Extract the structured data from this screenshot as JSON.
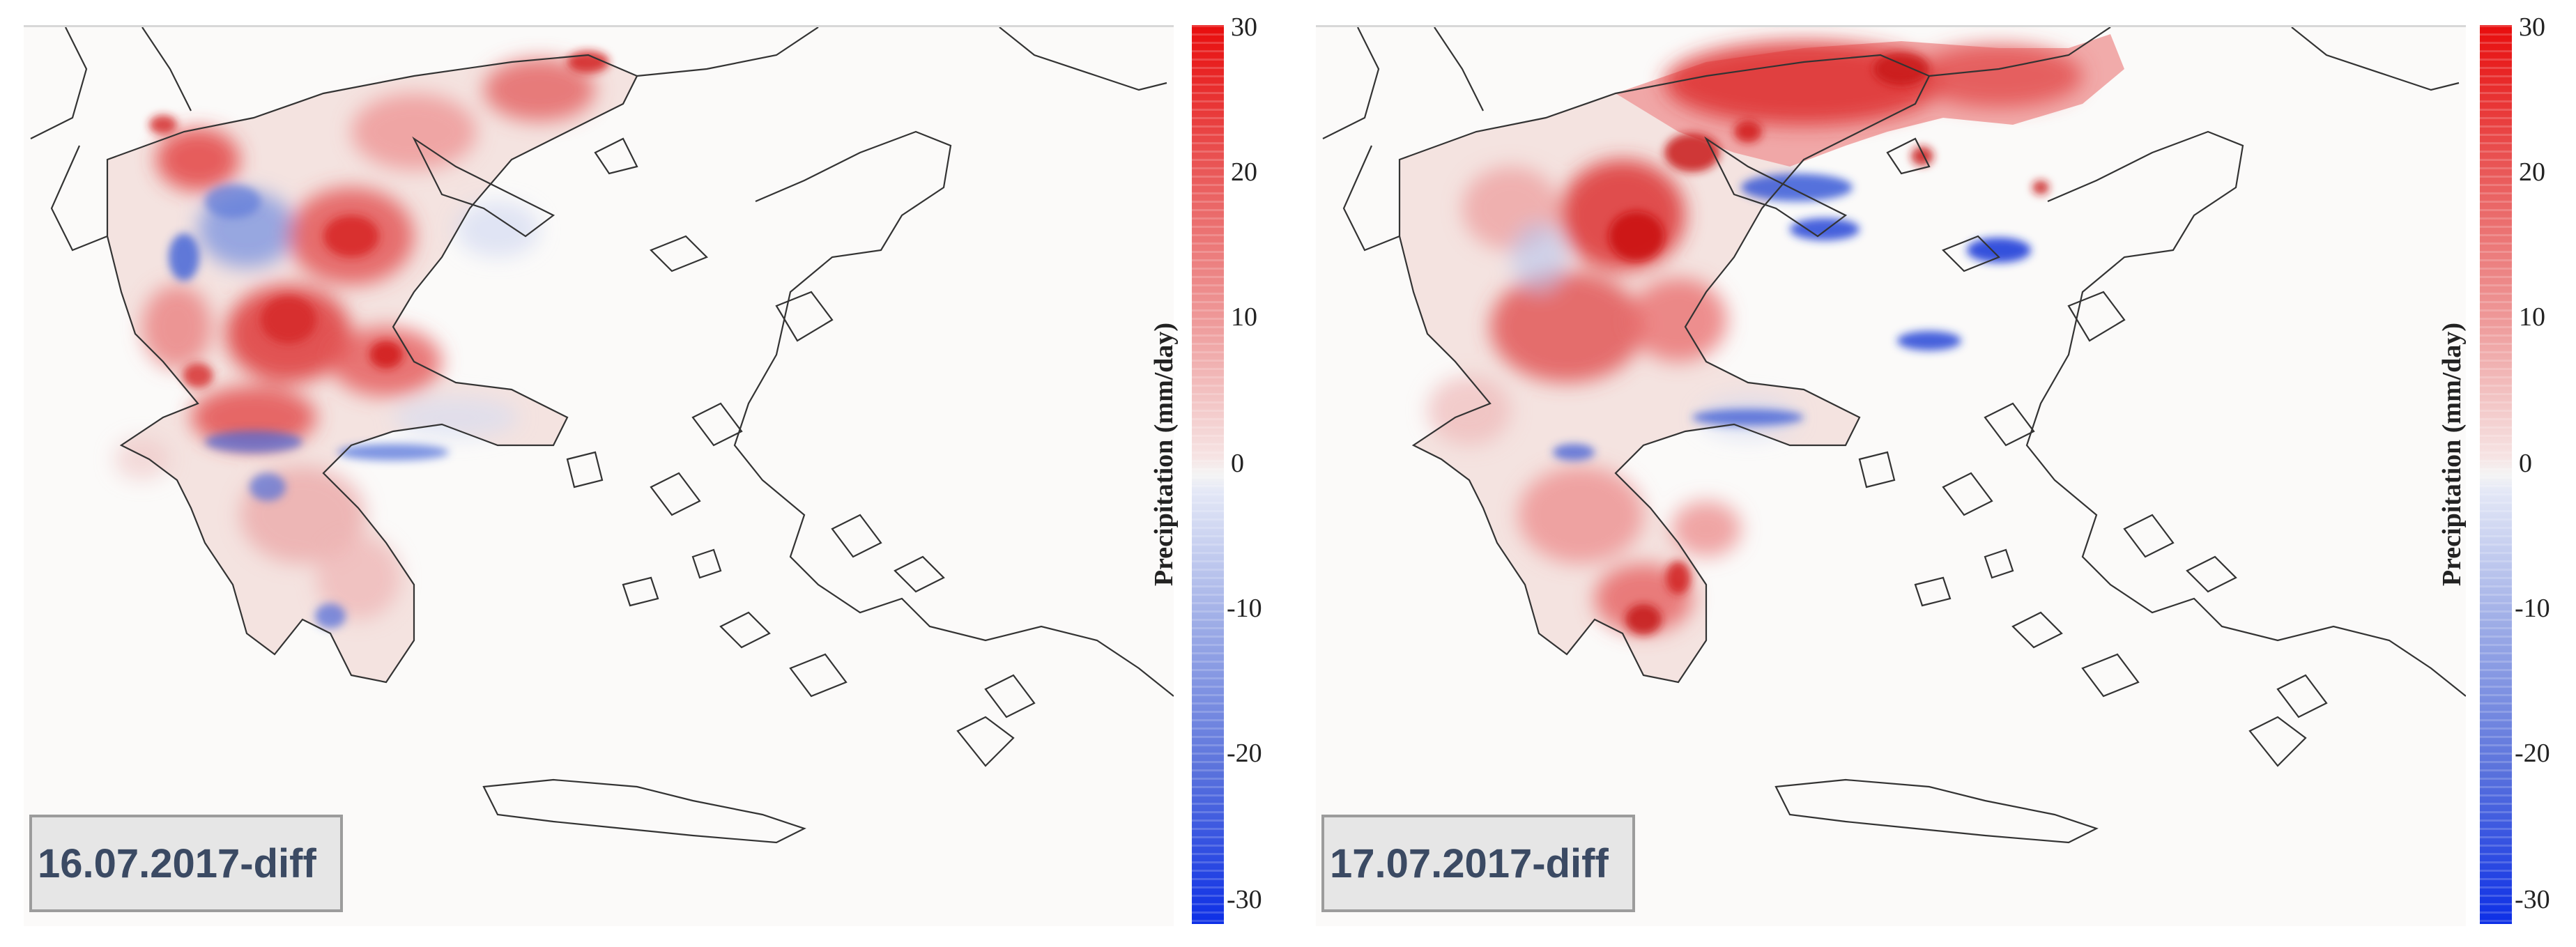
{
  "colorbar": {
    "label": "Precipitation (mm/day)",
    "ticks": [
      "30",
      "20",
      "10",
      "0",
      "-10",
      "-20",
      "-30"
    ],
    "min": -30,
    "max": 30,
    "colors": {
      "high": "#e80d0d",
      "zero": "#f4f4f4",
      "low": "#0d2fe6"
    }
  },
  "panels": [
    {
      "date_label": "16.07.2017-diff"
    },
    {
      "date_label": "17.07.2017-diff"
    }
  ]
}
